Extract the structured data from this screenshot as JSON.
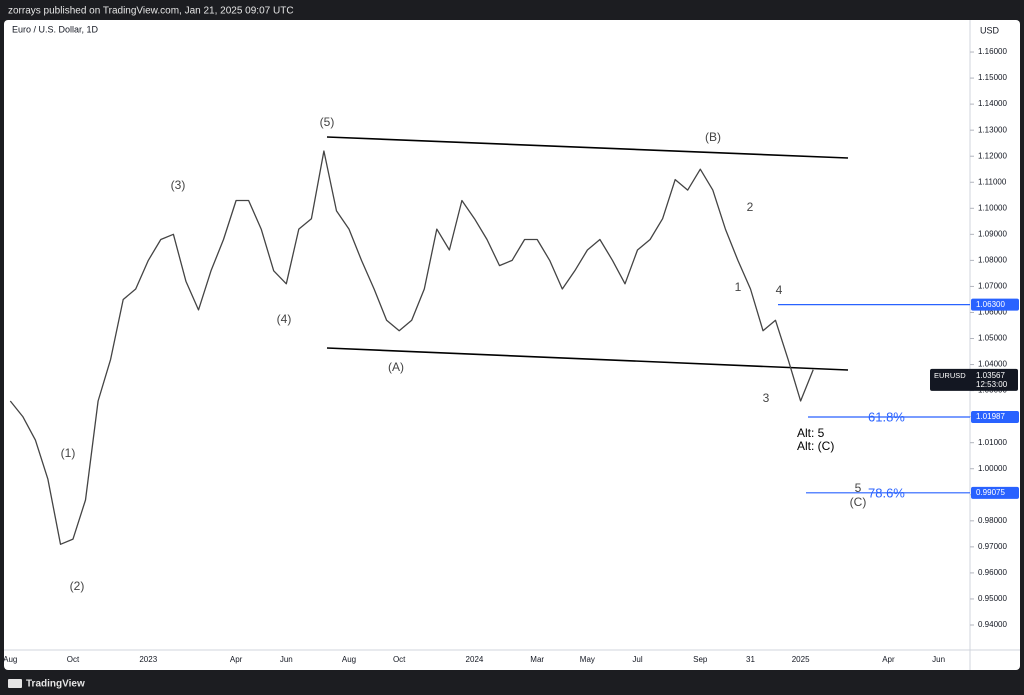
{
  "header": {
    "publisher": "zorrays published on TradingView.com, Jan 21, 2025 09:07 UTC",
    "brand": "TradingView"
  },
  "chart_data": {
    "type": "line",
    "title": "Euro / U.S. Dollar, 1D",
    "y_axis_label": "USD",
    "categories": [
      "Aug",
      null,
      null,
      null,
      null,
      "Oct",
      null,
      null,
      null,
      null,
      null,
      "2023",
      null,
      null,
      null,
      null,
      null,
      null,
      "Apr",
      null,
      null,
      null,
      "Jun",
      null,
      null,
      null,
      null,
      "Aug",
      null,
      null,
      null,
      "Oct",
      null,
      null,
      null,
      null,
      null,
      "2024",
      null,
      null,
      null,
      null,
      "Mar",
      null,
      null,
      null,
      "May",
      null,
      null,
      null,
      "Jul",
      null,
      null,
      null,
      null,
      "Sep",
      null,
      null,
      null,
      "31",
      null,
      null,
      null,
      "2025",
      null,
      null,
      null,
      null,
      null,
      null,
      "Apr",
      null,
      null,
      null,
      "Jun",
      null,
      null
    ],
    "series": [
      {
        "name": "EURUSD",
        "color": "#444444",
        "values": [
          1.026,
          1.02,
          1.011,
          0.996,
          0.971,
          0.973,
          0.988,
          1.026,
          1.042,
          1.065,
          1.069,
          1.08,
          1.088,
          1.09,
          1.072,
          1.061,
          1.076,
          1.088,
          1.103,
          1.103,
          1.092,
          1.076,
          1.071,
          1.092,
          1.096,
          1.122,
          1.099,
          1.092,
          1.08,
          1.069,
          1.057,
          1.053,
          1.057,
          1.069,
          1.092,
          1.084,
          1.103,
          1.096,
          1.088,
          1.078,
          1.08,
          1.088,
          1.088,
          1.08,
          1.069,
          1.076,
          1.084,
          1.088,
          1.08,
          1.071,
          1.084,
          1.088,
          1.096,
          1.111,
          1.107,
          1.115,
          1.107,
          1.092,
          1.08,
          1.069,
          1.053,
          1.057,
          1.042,
          1.026,
          1.038,
          null,
          null,
          null,
          null,
          null,
          null,
          null,
          null,
          null,
          null,
          null,
          null
        ]
      }
    ],
    "ylim": [
      0.9304,
      1.1723
    ],
    "yticks": [
      {
        "value": 0.94,
        "label": "0.94000"
      },
      {
        "value": 0.95,
        "label": "0.95000"
      },
      {
        "value": 0.96,
        "label": "0.96000"
      },
      {
        "value": 0.97,
        "label": "0.97000"
      },
      {
        "value": 0.98,
        "label": "0.98000"
      },
      {
        "value": 0.99,
        "label": "0.99000"
      },
      {
        "value": 1.0,
        "label": "1.00000"
      },
      {
        "value": 1.01,
        "label": "1.01000"
      },
      {
        "value": 1.02,
        "label": "1.02000"
      },
      {
        "value": 1.03,
        "label": "1.03000"
      },
      {
        "value": 1.04,
        "label": "1.04000"
      },
      {
        "value": 1.05,
        "label": "1.05000"
      },
      {
        "value": 1.06,
        "label": "1.06000"
      },
      {
        "value": 1.07,
        "label": "1.07000"
      },
      {
        "value": 1.08,
        "label": "1.08000"
      },
      {
        "value": 1.09,
        "label": "1.09000"
      },
      {
        "value": 1.1,
        "label": "1.10000"
      },
      {
        "value": 1.11,
        "label": "1.11000"
      },
      {
        "value": 1.12,
        "label": "1.12000"
      },
      {
        "value": 1.13,
        "label": "1.13000"
      },
      {
        "value": 1.14,
        "label": "1.14000"
      },
      {
        "value": 1.15,
        "label": "1.15000"
      },
      {
        "value": 1.16,
        "label": "1.16000"
      }
    ],
    "current": {
      "symbol": "EURUSD",
      "price": 1.03567,
      "countdown": "12:53:00"
    },
    "levels": [
      {
        "price": {
          "value": 1.063,
          "label": "1.06300"
        }
      },
      {
        "price": 1.01987,
        "text": "61.8%"
      },
      {
        "price": 0.99075,
        "text": "78.6%"
      }
    ],
    "level_color": "#2962ff",
    "annotations": [
      "(5)",
      "(B)",
      "(3)",
      "2",
      "1",
      "4",
      "(4)",
      "(A)",
      "3",
      "(1)",
      "(2)",
      "Alt: 5",
      "Alt: (C)",
      "5",
      "(C)"
    ]
  }
}
